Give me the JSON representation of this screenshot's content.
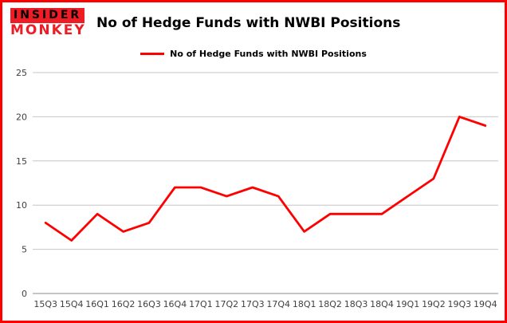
{
  "header": {
    "logo_line1": "INSIDER",
    "logo_line2": "MONKEY",
    "title": "No of Hedge Funds with NWBI Positions"
  },
  "legend": {
    "label": "No of Hedge Funds with NWBI Positions"
  },
  "chart_data": {
    "type": "line",
    "title": "No of Hedge Funds with NWBI Positions",
    "legend": "No of Hedge Funds with NWBI Positions",
    "categories": [
      "15Q3",
      "15Q4",
      "16Q1",
      "16Q2",
      "16Q3",
      "16Q4",
      "17Q1",
      "17Q2",
      "17Q3",
      "17Q4",
      "18Q1",
      "18Q2",
      "18Q3",
      "18Q4",
      "19Q1",
      "19Q2",
      "19Q3",
      "19Q4"
    ],
    "values": [
      8,
      6,
      9,
      7,
      8,
      12,
      12,
      11,
      12,
      11,
      7,
      9,
      9,
      9,
      11,
      13,
      20,
      19
    ],
    "xlabel": "",
    "ylabel": "",
    "ylim": [
      0,
      25
    ],
    "yticks": [
      0,
      5,
      10,
      15,
      20,
      25
    ],
    "grid": true,
    "legend_position": "top",
    "line_color": "#ff0000",
    "gridline_color": "#c6c6c6",
    "axis_color": "#8c8c8c",
    "tick_label_color": "#3f3f3f",
    "frame_border_color": "#ff0000"
  }
}
